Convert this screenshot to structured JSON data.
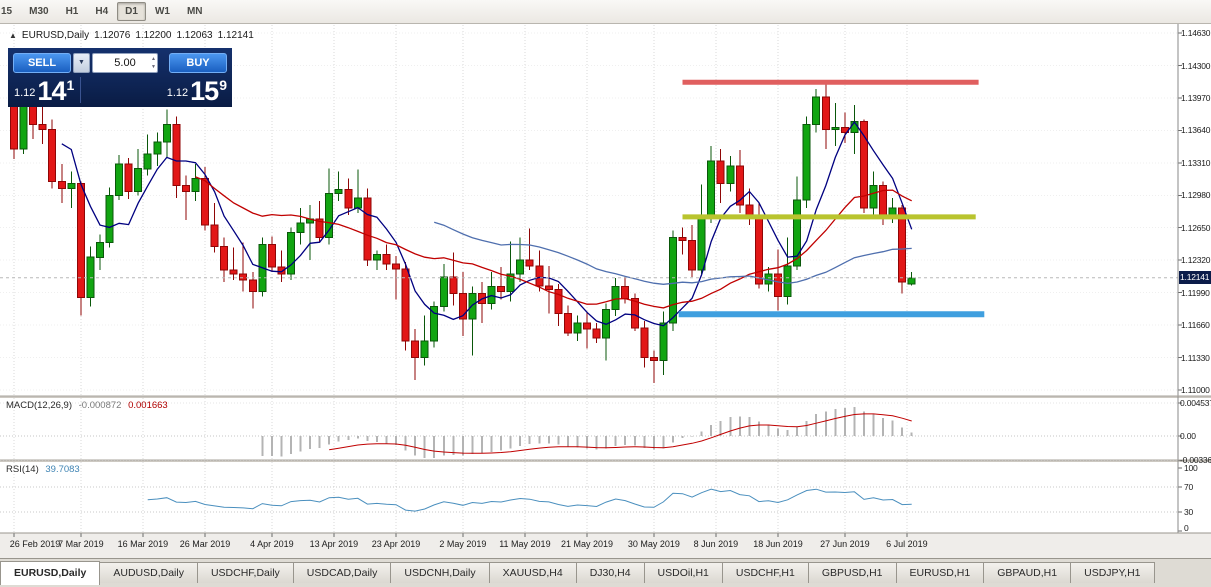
{
  "toolbar": {
    "timeframes": [
      {
        "label": "15",
        "active": false
      },
      {
        "label": "M30",
        "active": false
      },
      {
        "label": "H1",
        "active": false
      },
      {
        "label": "H4",
        "active": false
      },
      {
        "label": "D1",
        "active": true
      },
      {
        "label": "W1",
        "active": false
      },
      {
        "label": "MN",
        "active": false
      }
    ]
  },
  "header": {
    "symbol": "EURUSD,Daily",
    "open": "1.12076",
    "high": "1.12200",
    "low": "1.12063",
    "close": "1.12141"
  },
  "trade_panel": {
    "sell_label": "SELL",
    "buy_label": "BUY",
    "volume": "5.00",
    "sell_price": {
      "prefix": "1.12",
      "big": "14",
      "sup": "1"
    },
    "buy_price": {
      "prefix": "1.12",
      "big": "15",
      "sup": "9"
    }
  },
  "price_scale": {
    "current": "1.12141"
  },
  "chart_data": {
    "type": "candlestick",
    "symbol": "EURUSD",
    "period": "Daily",
    "current_price": "1.12141",
    "price_axis_labels": [
      "1.14630",
      "1.14300",
      "1.13970",
      "1.13640",
      "1.13310",
      "1.12980",
      "1.12650",
      "1.12320",
      "1.11990",
      "1.11660",
      "1.11330",
      "1.11000"
    ],
    "date_labels": [
      {
        "text": "26 Feb 2019",
        "bar": 0
      },
      {
        "text": "7 Mar 2019",
        "bar": 7
      },
      {
        "text": "16 Mar 2019",
        "bar": 13.5
      },
      {
        "text": "26 Mar 2019",
        "bar": 20
      },
      {
        "text": "4 Apr 2019",
        "bar": 27
      },
      {
        "text": "13 Apr 2019",
        "bar": 33.5
      },
      {
        "text": "23 Apr 2019",
        "bar": 40
      },
      {
        "text": "2 May 2019",
        "bar": 47
      },
      {
        "text": "11 May 2019",
        "bar": 53.5
      },
      {
        "text": "21 May 2019",
        "bar": 60
      },
      {
        "text": "30 May 2019",
        "bar": 67
      },
      {
        "text": "8 Jun 2019",
        "bar": 73.5
      },
      {
        "text": "18 Jun 2019",
        "bar": 80
      },
      {
        "text": "27 Jun 2019",
        "bar": 87
      },
      {
        "text": "6 Jul 2019",
        "bar": 93.5
      }
    ],
    "candles": [
      [
        1.139,
        1.14,
        1.1335,
        1.1345
      ],
      [
        1.1345,
        1.142,
        1.134,
        1.1405
      ],
      [
        1.1405,
        1.1412,
        1.1355,
        1.137
      ],
      [
        1.137,
        1.1396,
        1.135,
        1.1365
      ],
      [
        1.1365,
        1.1375,
        1.1305,
        1.1312
      ],
      [
        1.1312,
        1.133,
        1.129,
        1.1305
      ],
      [
        1.1305,
        1.1322,
        1.1285,
        1.131
      ],
      [
        1.131,
        1.1312,
        1.1176,
        1.1194
      ],
      [
        1.1194,
        1.1246,
        1.1185,
        1.1235
      ],
      [
        1.1235,
        1.1258,
        1.1222,
        1.125
      ],
      [
        1.125,
        1.1306,
        1.1245,
        1.1298
      ],
      [
        1.1298,
        1.1339,
        1.1293,
        1.133
      ],
      [
        1.133,
        1.1336,
        1.1294,
        1.1302
      ],
      [
        1.1302,
        1.1345,
        1.1298,
        1.1325
      ],
      [
        1.1325,
        1.136,
        1.1318,
        1.134
      ],
      [
        1.134,
        1.1362,
        1.1328,
        1.1352
      ],
      [
        1.1352,
        1.1385,
        1.1336,
        1.137
      ],
      [
        1.137,
        1.1378,
        1.1295,
        1.1308
      ],
      [
        1.1308,
        1.1318,
        1.1273,
        1.1302
      ],
      [
        1.1302,
        1.133,
        1.1292,
        1.1315
      ],
      [
        1.1315,
        1.1327,
        1.1262,
        1.1268
      ],
      [
        1.1268,
        1.129,
        1.124,
        1.1246
      ],
      [
        1.1246,
        1.1255,
        1.121,
        1.1222
      ],
      [
        1.1222,
        1.1245,
        1.1212,
        1.1218
      ],
      [
        1.1218,
        1.125,
        1.12,
        1.1212
      ],
      [
        1.1212,
        1.122,
        1.1183,
        1.12
      ],
      [
        1.12,
        1.1255,
        1.1195,
        1.1248
      ],
      [
        1.1248,
        1.1256,
        1.122,
        1.1225
      ],
      [
        1.1225,
        1.1242,
        1.121,
        1.1218
      ],
      [
        1.1218,
        1.1265,
        1.1212,
        1.126
      ],
      [
        1.126,
        1.1285,
        1.1248,
        1.127
      ],
      [
        1.127,
        1.1288,
        1.1232,
        1.1274
      ],
      [
        1.1274,
        1.1292,
        1.125,
        1.1255
      ],
      [
        1.1255,
        1.1325,
        1.1248,
        1.13
      ],
      [
        1.13,
        1.1322,
        1.1292,
        1.1304
      ],
      [
        1.1304,
        1.1315,
        1.1278,
        1.1285
      ],
      [
        1.1285,
        1.1324,
        1.128,
        1.1295
      ],
      [
        1.1295,
        1.1305,
        1.1226,
        1.1232
      ],
      [
        1.1232,
        1.1242,
        1.1222,
        1.1238
      ],
      [
        1.1238,
        1.1248,
        1.1222,
        1.1228
      ],
      [
        1.1228,
        1.1236,
        1.1192,
        1.1223
      ],
      [
        1.1223,
        1.123,
        1.114,
        1.115
      ],
      [
        1.115,
        1.1162,
        1.111,
        1.1133
      ],
      [
        1.1133,
        1.1176,
        1.1125,
        1.115
      ],
      [
        1.115,
        1.119,
        1.1143,
        1.1185
      ],
      [
        1.1185,
        1.1228,
        1.118,
        1.1215
      ],
      [
        1.1215,
        1.124,
        1.1186,
        1.1198
      ],
      [
        1.1198,
        1.122,
        1.1155,
        1.1172
      ],
      [
        1.1172,
        1.1205,
        1.1135,
        1.1198
      ],
      [
        1.1198,
        1.121,
        1.1168,
        1.1188
      ],
      [
        1.1188,
        1.122,
        1.1182,
        1.1205
      ],
      [
        1.1205,
        1.1225,
        1.1192,
        1.12
      ],
      [
        1.12,
        1.1251,
        1.119,
        1.1218
      ],
      [
        1.1218,
        1.1255,
        1.121,
        1.1232
      ],
      [
        1.1232,
        1.1264,
        1.1222,
        1.1226
      ],
      [
        1.1226,
        1.1242,
        1.12,
        1.1206
      ],
      [
        1.1206,
        1.1226,
        1.1178,
        1.1202
      ],
      [
        1.1202,
        1.1208,
        1.1165,
        1.1178
      ],
      [
        1.1178,
        1.1186,
        1.1155,
        1.1158
      ],
      [
        1.1158,
        1.1176,
        1.115,
        1.1168
      ],
      [
        1.1168,
        1.118,
        1.1142,
        1.1162
      ],
      [
        1.1162,
        1.1168,
        1.1148,
        1.1153
      ],
      [
        1.1153,
        1.1188,
        1.113,
        1.1182
      ],
      [
        1.1182,
        1.1214,
        1.1175,
        1.1205
      ],
      [
        1.1205,
        1.1215,
        1.1188,
        1.1193
      ],
      [
        1.1193,
        1.1198,
        1.116,
        1.1163
      ],
      [
        1.1163,
        1.117,
        1.1123,
        1.1133
      ],
      [
        1.1133,
        1.114,
        1.1107,
        1.113
      ],
      [
        1.113,
        1.118,
        1.1115,
        1.1168
      ],
      [
        1.1168,
        1.1262,
        1.116,
        1.1255
      ],
      [
        1.1255,
        1.1265,
        1.1238,
        1.1252
      ],
      [
        1.1252,
        1.1268,
        1.1215,
        1.1222
      ],
      [
        1.1222,
        1.1309,
        1.1218,
        1.1276
      ],
      [
        1.1276,
        1.1348,
        1.127,
        1.1333
      ],
      [
        1.1333,
        1.1345,
        1.129,
        1.131
      ],
      [
        1.131,
        1.1338,
        1.1302,
        1.1328
      ],
      [
        1.1328,
        1.1344,
        1.128,
        1.1288
      ],
      [
        1.1288,
        1.1305,
        1.1268,
        1.1276
      ],
      [
        1.1276,
        1.129,
        1.1203,
        1.1208
      ],
      [
        1.1208,
        1.1225,
        1.12,
        1.1218
      ],
      [
        1.1218,
        1.1243,
        1.1181,
        1.1195
      ],
      [
        1.1195,
        1.1255,
        1.1187,
        1.1226
      ],
      [
        1.1226,
        1.1317,
        1.1222,
        1.1293
      ],
      [
        1.1293,
        1.1378,
        1.1285,
        1.137
      ],
      [
        1.137,
        1.1406,
        1.1362,
        1.1398
      ],
      [
        1.1398,
        1.1412,
        1.1345,
        1.1365
      ],
      [
        1.1365,
        1.1392,
        1.1348,
        1.1367
      ],
      [
        1.1367,
        1.1382,
        1.1351,
        1.1362
      ],
      [
        1.1362,
        1.139,
        1.134,
        1.1373
      ],
      [
        1.1373,
        1.1375,
        1.128,
        1.1285
      ],
      [
        1.1285,
        1.1322,
        1.1275,
        1.1308
      ],
      [
        1.1308,
        1.1312,
        1.1268,
        1.1278
      ],
      [
        1.1278,
        1.1295,
        1.127,
        1.1285
      ],
      [
        1.1285,
        1.1288,
        1.1198,
        1.121
      ],
      [
        1.12076,
        1.122,
        1.12063,
        1.12141
      ]
    ],
    "style": {
      "bull_fill": "#11a511",
      "bull_stroke": "#0a570a",
      "bear_fill": "#e21717",
      "bear_stroke": "#8f0606",
      "grid": "#d6d6d6",
      "bid_line": "#b8b8b8"
    },
    "overlays": {
      "moving_averages": [
        {
          "period": 6,
          "color": "#000080"
        },
        {
          "period": 20,
          "color": "#c00000"
        },
        {
          "period": 45,
          "color": "#4f6fae"
        }
      ],
      "horizontal_rays": [
        {
          "price": 1.1413,
          "color": "#e05f5f",
          "from_bar": 70,
          "to_bar": 101,
          "width": 5
        },
        {
          "price": 1.1276,
          "color": "#b9c42e",
          "from_bar": 70,
          "to_bar": 100.7,
          "width": 5
        },
        {
          "price": 1.1177,
          "color": "#3f9fdf",
          "from_bar": 69.6,
          "to_bar": 101.6,
          "width": 6
        }
      ]
    },
    "indicators": {
      "macd": {
        "label": "MACD(12,26,9)",
        "value_main": "-0.000872",
        "value_signal": "0.001663",
        "fast": 12,
        "slow": 26,
        "signal": 9,
        "scale_labels": [
          "0.004537",
          "0.00",
          "-0.003362"
        ],
        "hist_color": "#b4b4b4",
        "signal_color": "#c00000"
      },
      "rsi": {
        "label": "RSI(14)",
        "value": "39.7083",
        "period": 14,
        "scale_values": [
          100,
          70,
          30,
          0
        ],
        "levels": [
          70,
          30
        ],
        "color": "#4a8fbe"
      }
    }
  },
  "tabs": [
    {
      "label": "EURUSD,Daily",
      "active": true
    },
    {
      "label": "AUDUSD,Daily",
      "active": false
    },
    {
      "label": "USDCHF,Daily",
      "active": false
    },
    {
      "label": "USDCAD,Daily",
      "active": false
    },
    {
      "label": "USDCNH,Daily",
      "active": false
    },
    {
      "label": "XAUUSD,H4",
      "active": false
    },
    {
      "label": "DJ30,H4",
      "active": false
    },
    {
      "label": "USDOil,H1",
      "active": false
    },
    {
      "label": "USDCHF,H1",
      "active": false
    },
    {
      "label": "GBPUSD,H1",
      "active": false
    },
    {
      "label": "EURUSD,H1",
      "active": false
    },
    {
      "label": "GBPAUD,H1",
      "active": false
    },
    {
      "label": "USDJPY,H1",
      "active": false
    }
  ]
}
